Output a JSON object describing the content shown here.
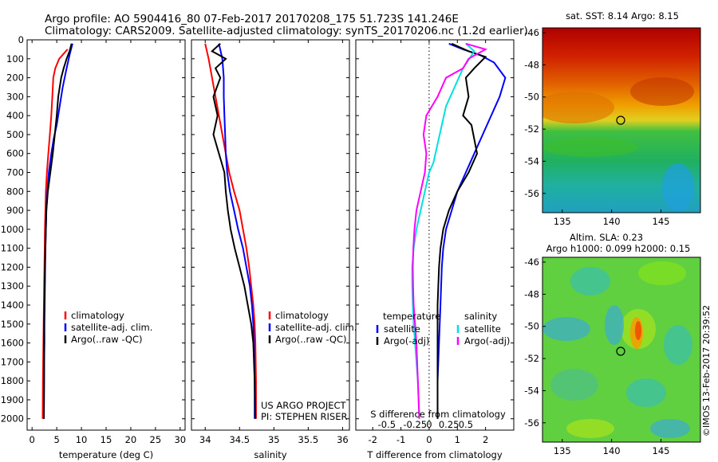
{
  "header": {
    "line1": "Argo profile: AO 5904416_80 07-Feb-2017 20170208_175 51.723S 141.246E",
    "line2": "Climatology: CARS2009. Satellite-adjusted climatology: synTS_20170206.nc (1.2d earlier)"
  },
  "colors": {
    "climatology": "#ff0000",
    "satellite": "#0000ff",
    "argo": "#000000",
    "argo_salinity_diff": "#ff00ff",
    "satellite_salinity_diff": "#00e0e0"
  },
  "chart_data": [
    {
      "type": "line",
      "xlabel": "temperature (deg C)",
      "ylabel": "",
      "xlim": [
        -1,
        31
      ],
      "ylim": [
        2060,
        0
      ],
      "xticks": [
        0,
        5,
        10,
        15,
        20,
        25,
        30
      ],
      "yticks": [
        0,
        100,
        200,
        300,
        400,
        500,
        600,
        700,
        800,
        900,
        1000,
        1100,
        1200,
        1300,
        1400,
        1500,
        1600,
        1700,
        1800,
        1900,
        2000
      ],
      "legend": {
        "placement": "bottom-center",
        "entries": [
          "climatology",
          "satellite-adj. clim.",
          "Argo(..raw -QC)"
        ]
      },
      "series": [
        {
          "name": "climatology",
          "color": "#ff0000",
          "x": [
            7.2,
            5.5,
            4.7,
            4.3,
            4.1,
            3.9,
            3.6,
            3.3,
            3.0,
            2.8,
            2.7,
            2.6,
            2.55,
            2.5,
            2.45,
            2.4,
            2.35,
            2.3,
            2.25,
            2.2,
            2.15
          ],
          "y": [
            50,
            100,
            150,
            200,
            300,
            400,
            500,
            600,
            700,
            800,
            900,
            1000,
            1100,
            1200,
            1300,
            1400,
            1500,
            1600,
            1700,
            1800,
            2000
          ]
        },
        {
          "name": "satellite-adj. clim.",
          "color": "#0000ff",
          "x": [
            8.2,
            7.6,
            7.0,
            6.2,
            5.6,
            5.0,
            4.4,
            3.9,
            3.4,
            3.1,
            2.9,
            2.8,
            2.7,
            2.65,
            2.6,
            2.55,
            2.5,
            2.5,
            2.45,
            2.45,
            2.4
          ],
          "y": [
            20,
            80,
            150,
            250,
            350,
            450,
            520,
            600,
            700,
            800,
            900,
            1000,
            1100,
            1200,
            1300,
            1400,
            1500,
            1600,
            1700,
            1800,
            2000
          ]
        },
        {
          "name": "Argo(..raw -QC)",
          "color": "#000000",
          "x": [
            8.0,
            7.6,
            7.0,
            6.4,
            5.9,
            5.3,
            5.0,
            4.6,
            4.2,
            3.7,
            3.2,
            2.9,
            2.8,
            2.7,
            2.6,
            2.55,
            2.5,
            2.45,
            2.45,
            2.4
          ],
          "y": [
            20,
            60,
            100,
            150,
            200,
            300,
            400,
            500,
            600,
            700,
            800,
            900,
            1000,
            1100,
            1200,
            1300,
            1400,
            1500,
            1700,
            2000
          ]
        }
      ]
    },
    {
      "type": "line",
      "xlabel": "salinity",
      "ylabel": "",
      "xlim": [
        33.8,
        36.1
      ],
      "ylim": [
        2060,
        0
      ],
      "xticks": [
        34,
        34.5,
        35,
        35.5,
        36
      ],
      "legend": {
        "placement": "bottom-center",
        "entries": [
          "climatology",
          "satellite-adj. clim.",
          "Argo(..raw -QC)"
        ]
      },
      "annotations": [
        "US ARGO PROJECT",
        "PI: STEPHEN RISER"
      ],
      "series": [
        {
          "name": "climatology",
          "color": "#ff0000",
          "x": [
            34.0,
            34.05,
            34.1,
            34.15,
            34.2,
            34.25,
            34.3,
            34.35,
            34.42,
            34.5,
            34.55,
            34.6,
            34.64,
            34.67,
            34.7,
            34.72,
            34.73,
            34.74,
            34.74
          ],
          "y": [
            20,
            100,
            200,
            300,
            400,
            500,
            600,
            700,
            800,
            900,
            1000,
            1100,
            1200,
            1300,
            1400,
            1500,
            1600,
            1800,
            2000
          ]
        },
        {
          "name": "satellite-adj. clim.",
          "color": "#0000ff",
          "x": [
            34.2,
            34.25,
            34.27,
            34.27,
            34.28,
            34.29,
            34.3,
            34.32,
            34.36,
            34.42,
            34.48,
            34.55,
            34.6,
            34.65,
            34.68,
            34.7,
            34.71,
            34.72,
            34.72
          ],
          "y": [
            20,
            100,
            200,
            300,
            400,
            500,
            600,
            700,
            800,
            900,
            1000,
            1100,
            1200,
            1300,
            1400,
            1500,
            1600,
            1800,
            2000
          ]
        },
        {
          "name": "Argo(..raw -QC)",
          "color": "#000000",
          "x": [
            34.22,
            34.1,
            34.3,
            34.15,
            34.22,
            34.12,
            34.18,
            34.12,
            34.2,
            34.24,
            34.28,
            34.3,
            34.33,
            34.37,
            34.43,
            34.5,
            34.57,
            34.62,
            34.67,
            34.7,
            34.72,
            34.73
          ],
          "y": [
            20,
            60,
            100,
            150,
            200,
            300,
            400,
            500,
            600,
            650,
            700,
            800,
            900,
            1000,
            1100,
            1200,
            1300,
            1400,
            1500,
            1600,
            1800,
            2000
          ]
        }
      ]
    },
    {
      "type": "line",
      "xlabel": "T difference from climatology",
      "xlabel2": "S difference from climatology",
      "ylabel": "",
      "xlim": [
        -2.6,
        3.0
      ],
      "ylim": [
        2060,
        0
      ],
      "xticks": [
        -2,
        -1,
        0,
        1,
        2
      ],
      "xticks2": [
        {
          "label": "-0.5",
          "t": -1.5
        },
        {
          "label": "-0.25",
          "t": -0.5
        },
        {
          "label": "0",
          "t": 0
        },
        {
          "label": "0.25",
          "t": 0.7
        },
        {
          "label": "0.5",
          "t": 1.3
        }
      ],
      "zero_line": "dotted",
      "legend": {
        "placement": "bottom-center",
        "groups": [
          "temperature",
          "salinity"
        ],
        "entries": [
          "satellite",
          "Argo(-adj)",
          "satellite",
          "Argo(-adj)"
        ]
      },
      "series": [
        {
          "name": "satellite",
          "group": "temperature",
          "color": "#0000ff",
          "x": [
            0.7,
            1.2,
            1.8,
            2.3,
            2.7,
            2.5,
            2.2,
            1.9,
            1.6,
            1.3,
            1.0,
            0.8,
            0.6,
            0.5,
            0.45,
            0.4,
            0.35,
            0.3,
            0.3,
            0.3
          ],
          "y": [
            20,
            50,
            80,
            120,
            200,
            300,
            400,
            500,
            600,
            700,
            800,
            900,
            1000,
            1100,
            1200,
            1400,
            1600,
            1800,
            1900,
            2000
          ]
        },
        {
          "name": "Argo(-adj)",
          "group": "temperature",
          "color": "#000000",
          "x": [
            0.8,
            1.4,
            2.0,
            1.6,
            1.3,
            1.4,
            1.2,
            1.5,
            1.7,
            1.4,
            1.0,
            0.7,
            0.5,
            0.4,
            0.35,
            0.3,
            0.3,
            0.3
          ],
          "y": [
            20,
            60,
            90,
            150,
            200,
            300,
            400,
            450,
            600,
            700,
            800,
            900,
            1000,
            1100,
            1200,
            1400,
            1700,
            2000
          ]
        },
        {
          "name": "satellite",
          "group": "salinity",
          "color": "#00e0e0",
          "x": [
            1.3,
            1.6,
            1.2,
            0.9,
            0.6,
            0.45,
            0.3,
            0.15,
            0.0,
            -0.15,
            -0.3,
            -0.45,
            -0.55,
            -0.6,
            -0.6,
            -0.58,
            -0.55,
            -0.5,
            -0.45,
            -0.4,
            -0.35
          ],
          "y": [
            20,
            60,
            150,
            250,
            350,
            450,
            550,
            650,
            700,
            800,
            900,
            1000,
            1100,
            1200,
            1300,
            1400,
            1500,
            1600,
            1700,
            1800,
            2000
          ]
        },
        {
          "name": "Argo(-adj)",
          "group": "salinity",
          "color": "#ff00ff",
          "x": [
            1.3,
            2.0,
            1.4,
            1.2,
            0.6,
            0.3,
            -0.1,
            -0.2,
            -0.1,
            -0.15,
            -0.3,
            -0.45,
            -0.52,
            -0.56,
            -0.58,
            -0.57,
            -0.55,
            -0.5,
            -0.45,
            -0.4,
            -0.35
          ],
          "y": [
            20,
            50,
            100,
            150,
            200,
            300,
            400,
            500,
            600,
            700,
            800,
            900,
            1000,
            1100,
            1200,
            1300,
            1400,
            1500,
            1600,
            1800,
            2000
          ]
        }
      ]
    },
    {
      "type": "heatmap",
      "title": "sat. SST: 8.14 Argo: 8.15",
      "xlim": [
        133,
        149
      ],
      "ylim": [
        -57.2,
        -45.7
      ],
      "xticks": [
        135,
        140,
        145
      ],
      "yticks": [
        -46,
        -48,
        -50,
        -52,
        -54,
        -56
      ],
      "marker": {
        "lon": 141.246,
        "lat": -51.723
      }
    },
    {
      "type": "heatmap",
      "title": "Altim. SLA: 0.23",
      "subtitle": "Argo h1000: 0.099 h2000: 0.15",
      "xlim": [
        133,
        149
      ],
      "ylim": [
        -57.2,
        -45.7
      ],
      "xticks": [
        135,
        140,
        145
      ],
      "yticks": [
        -46,
        -48,
        -50,
        -52,
        -54,
        -56
      ],
      "marker": {
        "lon": 141.246,
        "lat": -51.723
      }
    }
  ],
  "footer": {
    "stamp": "©IMOS 13-Feb-2017 20:39:52"
  }
}
